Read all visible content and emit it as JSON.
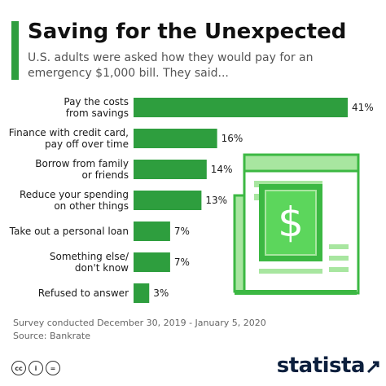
{
  "header": {
    "title": "Saving for the Unexpected",
    "subtitle": "U.S. adults were asked how they would pay for an emergency $1,000 bill. They said..."
  },
  "chart_data": {
    "type": "bar",
    "orientation": "horizontal",
    "title": "Saving for the Unexpected",
    "subtitle": "U.S. adults were asked how they would pay for an emergency $1,000 bill. They said...",
    "categories": [
      [
        "Pay the costs",
        "from savings"
      ],
      [
        "Finance with credit card,",
        "pay off over time"
      ],
      [
        "Borrow from family",
        "or friends"
      ],
      [
        "Reduce your spending",
        "on other things"
      ],
      [
        "Take out a personal loan"
      ],
      [
        "Something else/",
        "don't know"
      ],
      [
        "Refused to answer"
      ]
    ],
    "values": [
      41,
      16,
      14,
      13,
      7,
      7,
      3
    ],
    "value_labels": [
      "41%",
      "16%",
      "14%",
      "13%",
      "7%",
      "7%",
      "3%"
    ],
    "unit": "%",
    "xlim": [
      0,
      41
    ],
    "grid": false,
    "bar_color": "#2e9e3e"
  },
  "footer": {
    "note": "Survey conducted December 30, 2019 - January 5, 2020",
    "source": "Source: Bankrate",
    "license_icons": [
      "cc",
      "i",
      "="
    ],
    "brand": "statista"
  },
  "illustration": {
    "icon": "dollar-bill-newspaper-icon",
    "colors": {
      "light": "#a8e6a0",
      "mid": "#5cd65c",
      "dark": "#3cb843",
      "outline": "#2e9e3e"
    }
  },
  "colors": {
    "accent": "#2e9e3e",
    "bar": "#2e9e3e",
    "brand_navy": "#0c1f3d"
  }
}
